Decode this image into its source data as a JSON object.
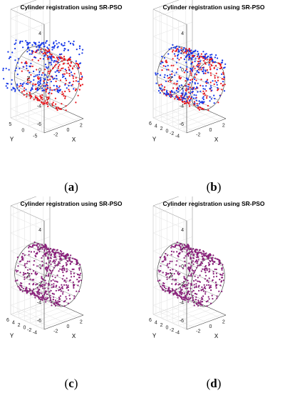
{
  "chart_data": [
    {
      "type": "scatter",
      "title": "Cylinder registration using SR-PSO",
      "xlabel": "X",
      "ylabel": "Y",
      "zlabel": "Z",
      "x_ticks": [
        "-2",
        "0",
        "2"
      ],
      "y_ticks": [
        "-5",
        "0",
        "5"
      ],
      "z_ticks": [
        "-6",
        "-4",
        "-2",
        "0",
        "2",
        "4"
      ],
      "xlim": [
        -3,
        3
      ],
      "ylim": [
        -6,
        7
      ],
      "zlim": [
        -7,
        5
      ],
      "cylinder": {
        "axis": "y",
        "radius": 2.6,
        "center_z": -2.5,
        "length": 12
      },
      "series": [
        {
          "color": "#e8141b",
          "point_count": 260,
          "offset": [
            0,
            -1.6,
            0
          ],
          "rotation_deg": 0
        },
        {
          "color": "#1436e8",
          "point_count": 260,
          "offset": [
            0.3,
            2.2,
            0.9
          ],
          "rotation_deg": 22
        }
      ],
      "caption_label": "a",
      "grid": true
    },
    {
      "type": "scatter",
      "title": "Cylinder registration using SR-PSO",
      "xlabel": "X",
      "ylabel": "Y",
      "zlabel": "Z",
      "x_ticks": [
        "-2",
        "0",
        "2"
      ],
      "y_ticks": [
        "-4",
        "-2",
        "0",
        "2",
        "4",
        "6"
      ],
      "z_ticks": [
        "-6",
        "-4",
        "-2",
        "0",
        "2",
        "4"
      ],
      "xlim": [
        -3,
        3
      ],
      "ylim": [
        -5,
        7
      ],
      "zlim": [
        -7,
        5
      ],
      "cylinder": {
        "axis": "y",
        "radius": 2.6,
        "center_z": -2.5,
        "length": 12
      },
      "series": [
        {
          "color": "#e8141b",
          "point_count": 260,
          "offset": [
            0,
            -0.5,
            0
          ],
          "rotation_deg": 0
        },
        {
          "color": "#1436e8",
          "point_count": 260,
          "offset": [
            0.1,
            0.3,
            0.2
          ],
          "rotation_deg": 6
        }
      ],
      "caption_label": "b",
      "grid": true
    },
    {
      "type": "scatter",
      "title": "Cylinder registration using SR-PSO",
      "xlabel": "X",
      "ylabel": "Y",
      "zlabel": "Z",
      "x_ticks": [
        "-2",
        "0",
        "2"
      ],
      "y_ticks": [
        "-4",
        "-2",
        "0",
        "2",
        "4",
        "6"
      ],
      "z_ticks": [
        "-6",
        "-4",
        "-2",
        "0",
        "2",
        "4"
      ],
      "xlim": [
        -3,
        3
      ],
      "ylim": [
        -5,
        7
      ],
      "zlim": [
        -7,
        5
      ],
      "cylinder": {
        "axis": "y",
        "radius": 2.6,
        "center_z": -2.5,
        "length": 12
      },
      "series": [
        {
          "color": "#e8141b",
          "point_count": 260,
          "offset": [
            0,
            0,
            0
          ],
          "rotation_deg": 0
        },
        {
          "color": "#2a2ad8",
          "point_count": 260,
          "offset": [
            0,
            0.05,
            0
          ],
          "rotation_deg": 0
        }
      ],
      "caption_label": "c",
      "grid": true
    },
    {
      "type": "scatter",
      "title": "Cylinder registration using SR-PSO",
      "xlabel": "X",
      "ylabel": "Y",
      "zlabel": "Z",
      "x_ticks": [
        "-2",
        "0",
        "2"
      ],
      "y_ticks": [
        "-4",
        "-2",
        "0",
        "2",
        "4",
        "6"
      ],
      "z_ticks": [
        "-6",
        "-4",
        "-2",
        "0",
        "2",
        "4"
      ],
      "xlim": [
        -3,
        3
      ],
      "ylim": [
        -5,
        7
      ],
      "zlim": [
        -7,
        5
      ],
      "cylinder": {
        "axis": "y",
        "radius": 2.6,
        "center_z": -2.5,
        "length": 12
      },
      "series": [
        {
          "color": "#e8141b",
          "point_count": 260,
          "offset": [
            0,
            0,
            0
          ],
          "rotation_deg": 0
        },
        {
          "color": "#2a2ad8",
          "point_count": 260,
          "offset": [
            0,
            0,
            0
          ],
          "rotation_deg": 0
        }
      ],
      "caption_label": "d",
      "grid": true
    }
  ]
}
